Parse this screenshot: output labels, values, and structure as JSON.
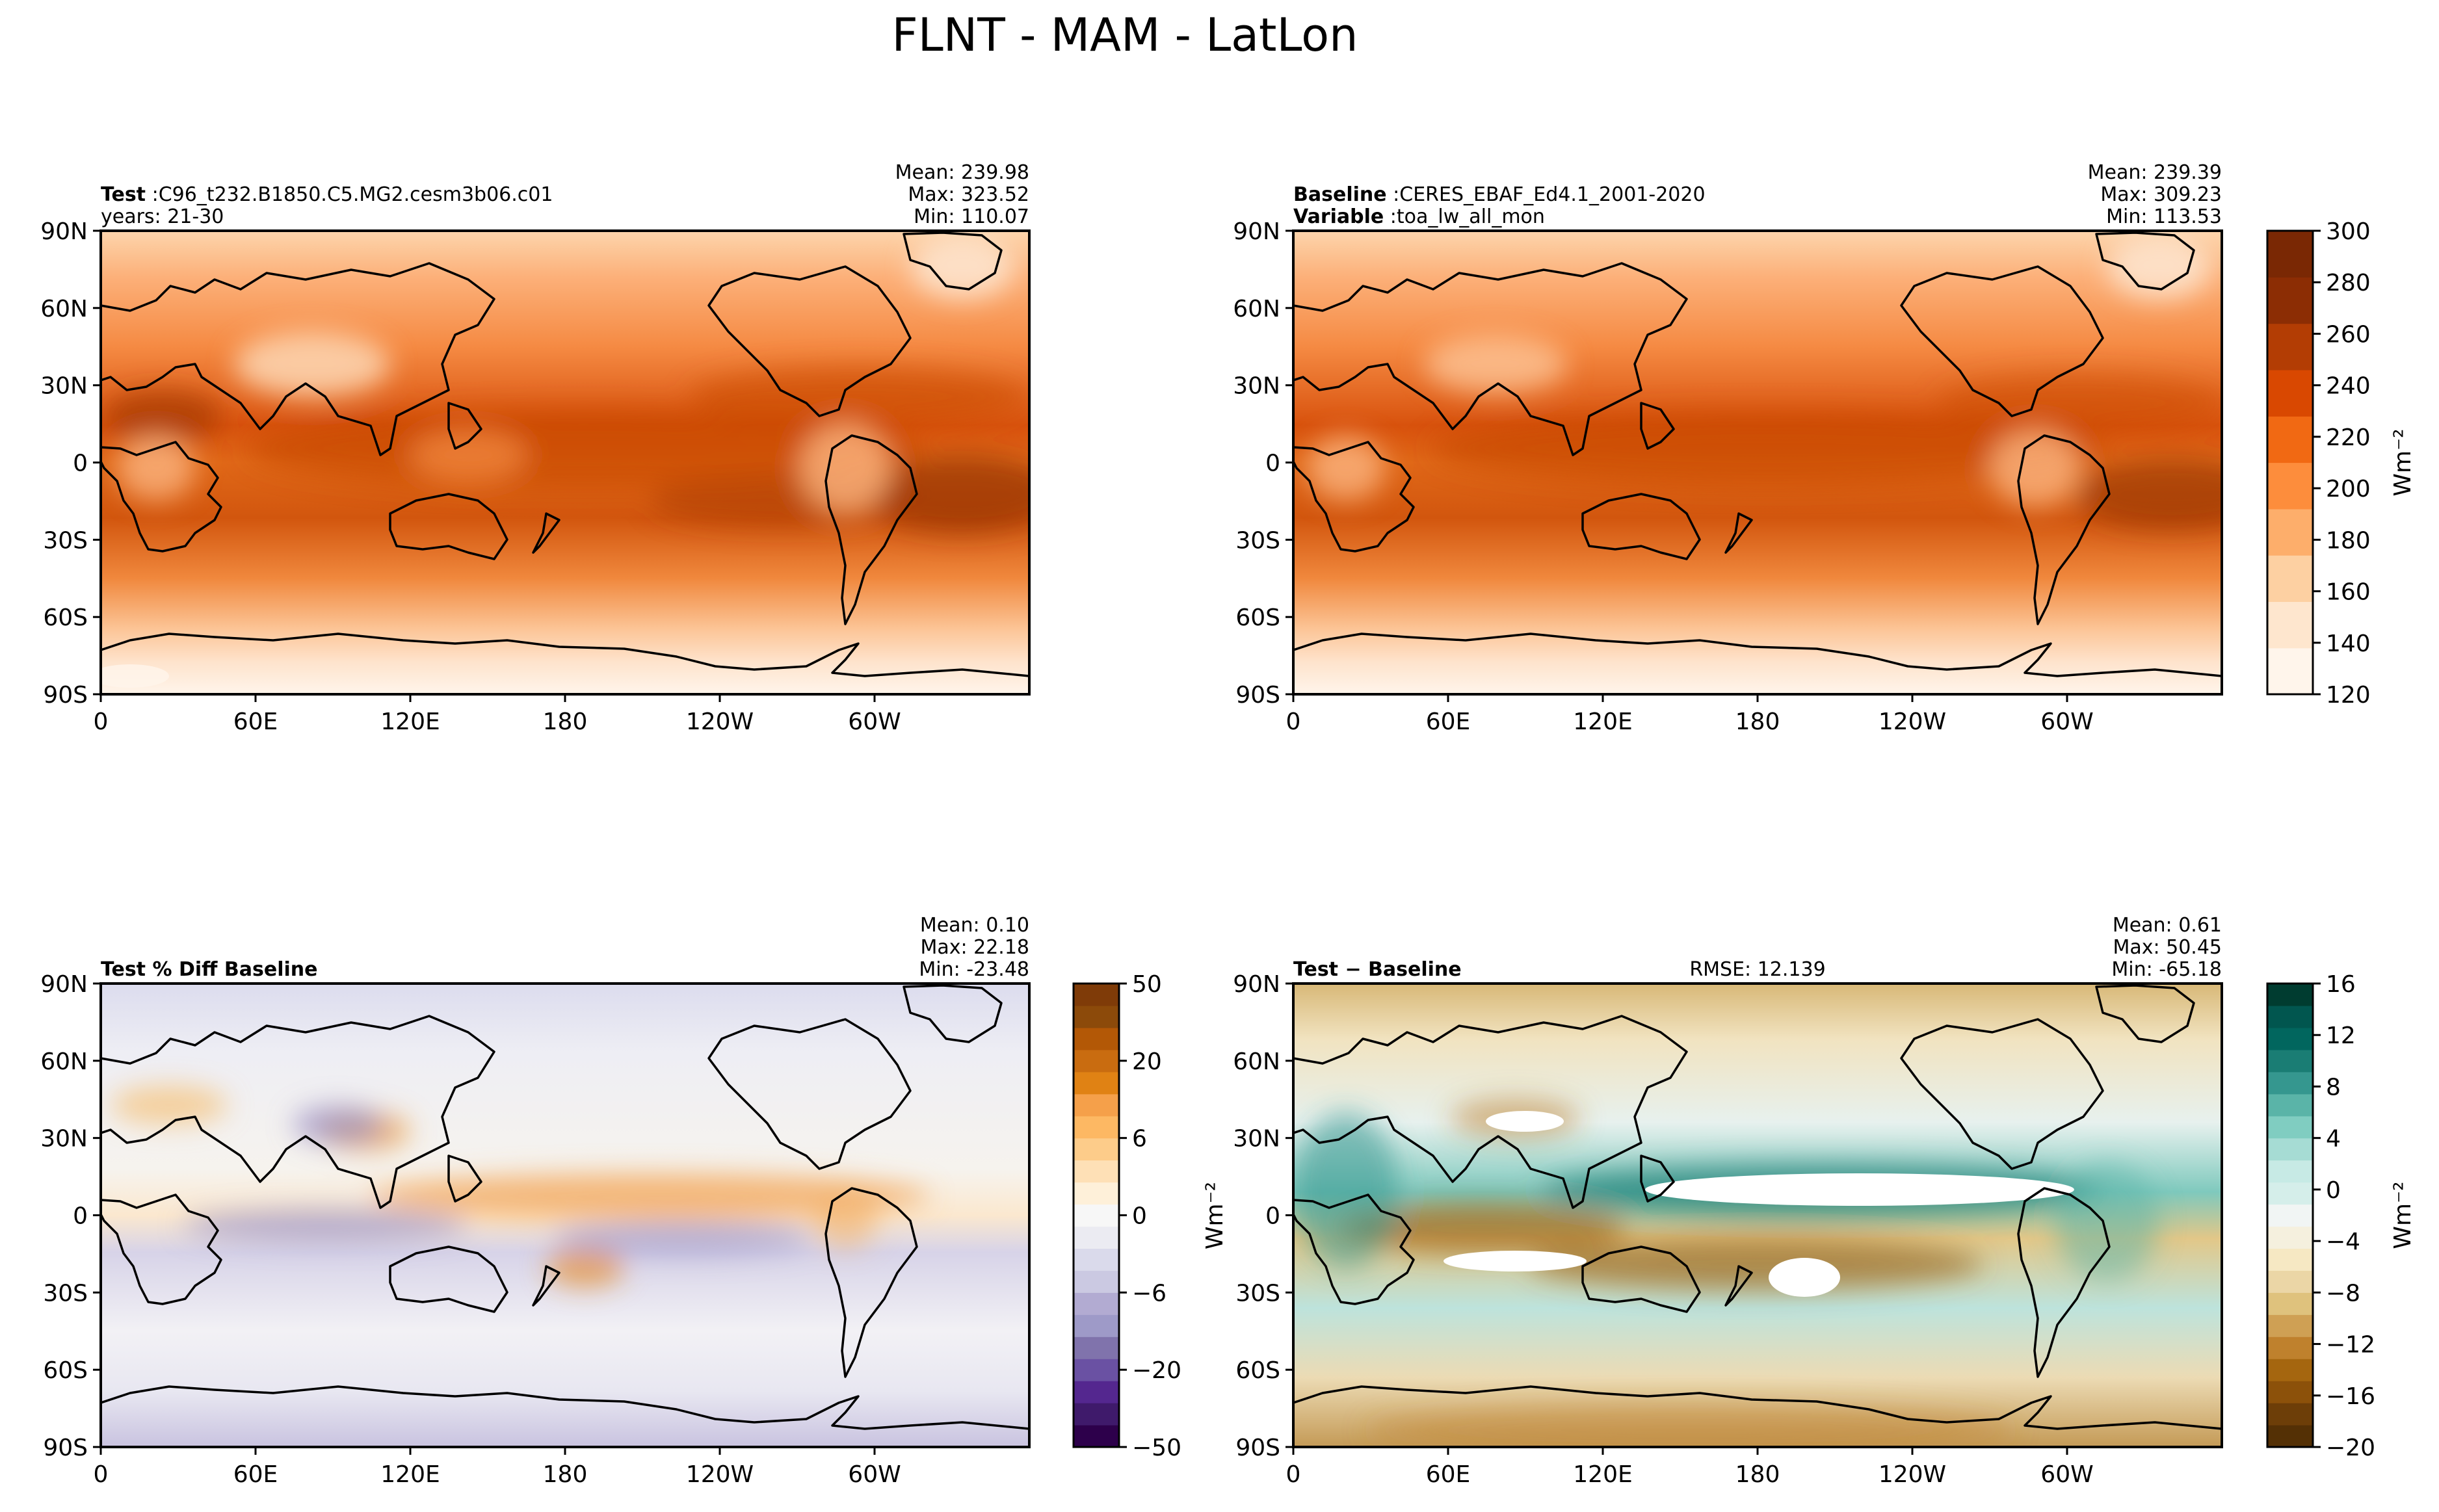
{
  "figure": {
    "title": "FLNT - MAM - LatLon"
  },
  "panels": [
    {
      "id": "test",
      "header": [
        {
          "bold": "Test",
          "sep": ":",
          "text": "C96_t232.B1850.C5.MG2.cesm3b06.c01"
        },
        {
          "bold": "",
          "sep": "",
          "text": "years: 21-30"
        }
      ],
      "stats": [
        "Mean: 239.98",
        "Max: 323.52",
        "Min: 110.07"
      ],
      "rmse": "",
      "palette": "oranges"
    },
    {
      "id": "baseline",
      "header": [
        {
          "bold": "Baseline",
          "sep": ":",
          "text": "CERES_EBAF_Ed4.1_2001-2020"
        },
        {
          "bold": "Variable",
          "sep": ":",
          "text": "toa_lw_all_mon"
        }
      ],
      "stats": [
        "Mean: 239.39",
        "Max: 309.23",
        "Min: 113.53"
      ],
      "rmse": "",
      "palette": "oranges"
    },
    {
      "id": "pctdiff",
      "header": [
        {
          "bold": "Test % Diff Baseline",
          "sep": "",
          "text": ""
        }
      ],
      "stats": [
        "Mean:  0.10",
        "Max: 22.18",
        "Min: -23.48"
      ],
      "rmse": "",
      "palette": "puor"
    },
    {
      "id": "diff",
      "header": [
        {
          "bold": "Test − Baseline",
          "sep": "",
          "text": ""
        }
      ],
      "stats": [
        "Mean:  0.61",
        "Max: 50.45",
        "Min: -65.18"
      ],
      "rmse": "RMSE: 12.139",
      "palette": "brbg"
    }
  ],
  "axes": {
    "lat_ticks": [
      "90N",
      "60N",
      "30N",
      "0",
      "30S",
      "60S",
      "90S"
    ],
    "lon_ticks": [
      "0",
      "60E",
      "120E",
      "180",
      "120W",
      "60W"
    ]
  },
  "colorbars": [
    {
      "id": "abs",
      "label": "Wm⁻²",
      "ticks": [
        "300",
        "280",
        "260",
        "240",
        "220",
        "200",
        "180",
        "160",
        "140",
        "120"
      ],
      "colors": [
        "#fff5eb",
        "#fee6ce",
        "#fdd0a2",
        "#fdae6b",
        "#fd8d3c",
        "#f16913",
        "#d94801",
        "#b33d04",
        "#8c2d04",
        "#7a2804"
      ]
    },
    {
      "id": "pct",
      "label": "",
      "ticks": [
        "50",
        "20",
        "6",
        "0",
        "−6",
        "−20",
        "−50"
      ],
      "colors": [
        "#2d004b",
        "#3f1a6b",
        "#54278f",
        "#6a51a3",
        "#8073ac",
        "#9e9ac8",
        "#b2abd2",
        "#cbc9e2",
        "#dadaeb",
        "#ebebf2",
        "#f7f7f7",
        "#fef0d9",
        "#fee0b6",
        "#fdcc8a",
        "#fdb863",
        "#f5a04a",
        "#e08214",
        "#c96c10",
        "#b35806",
        "#8c4a0a",
        "#7f3b08"
      ]
    },
    {
      "id": "diff",
      "label": "Wm⁻²",
      "ticks": [
        "16",
        "12",
        "8",
        "4",
        "0",
        "−4",
        "−8",
        "−12",
        "−16",
        "−20"
      ],
      "colors": [
        "#543005",
        "#6d3e08",
        "#8c510a",
        "#a5660f",
        "#bf812d",
        "#cfa054",
        "#dfc27d",
        "#ebd6a6",
        "#f6e8c3",
        "#f5f0de",
        "#f1f5f4",
        "#d5eeea",
        "#c7eae5",
        "#a6dcd4",
        "#80cdc1",
        "#5ab4a8",
        "#35978f",
        "#1a7d74",
        "#01665e",
        "#01564f",
        "#003c30"
      ]
    }
  ],
  "ylabel_units": "Wm⁻²"
}
